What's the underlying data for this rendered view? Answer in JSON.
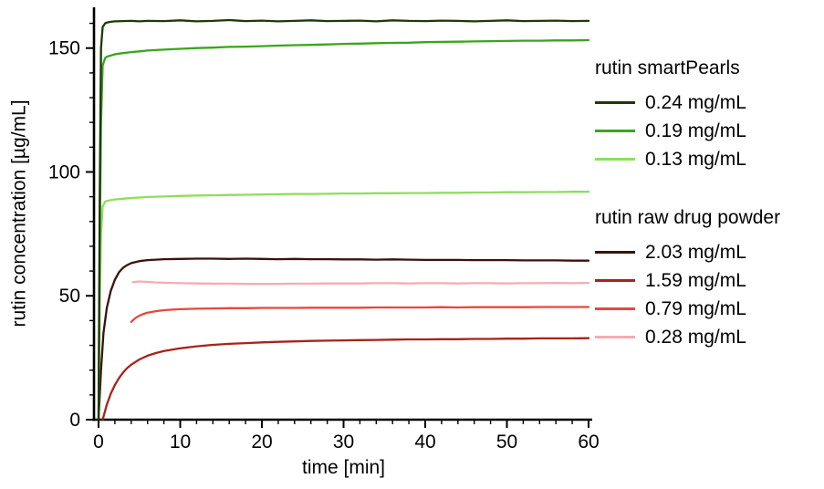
{
  "chart_data": {
    "type": "line",
    "title": "",
    "xlabel": "time [min]",
    "ylabel": "rutin concentration [µg/mL]",
    "xlim": [
      0,
      60
    ],
    "ylim": [
      0,
      165
    ],
    "xticks": [
      0,
      10,
      20,
      30,
      40,
      50,
      60
    ],
    "yticks": [
      0,
      50,
      100,
      150
    ],
    "x_minor_step": 2,
    "y_minor_step": 10,
    "grid": false,
    "axis_color": "#000000",
    "legend": {
      "position": "right",
      "groups": [
        {
          "title": "rutin smartPearls",
          "entries": [
            {
              "label": "0.24 mg/mL",
              "series": 0
            },
            {
              "label": "0.19 mg/mL",
              "series": 1
            },
            {
              "label": "0.13 mg/mL",
              "series": 2
            }
          ]
        },
        {
          "title": "rutin raw drug powder",
          "entries": [
            {
              "label": "2.03 mg/mL",
              "series": 3
            },
            {
              "label": "1.59 mg/mL",
              "series": 4
            },
            {
              "label": "0.79 mg/mL",
              "series": 5
            },
            {
              "label": "0.28 mg/mL",
              "series": 6
            }
          ]
        }
      ]
    },
    "series": [
      {
        "name": "rutin smartPearls 0.24 mg/mL",
        "color": "#1c3a08",
        "points": [
          [
            0,
            0
          ],
          [
            0.15,
            90
          ],
          [
            0.3,
            150
          ],
          [
            0.5,
            158.5
          ],
          [
            0.8,
            160
          ],
          [
            1,
            160.3
          ],
          [
            1.5,
            160.6
          ],
          [
            2,
            160.8
          ],
          [
            3,
            160.9
          ],
          [
            4,
            161
          ],
          [
            5,
            160.8
          ],
          [
            6,
            161
          ],
          [
            8,
            160.9
          ],
          [
            10,
            161.2
          ],
          [
            12,
            160.8
          ],
          [
            14,
            161
          ],
          [
            16,
            161.3
          ],
          [
            18,
            160.9
          ],
          [
            20,
            161.1
          ],
          [
            22,
            160.8
          ],
          [
            24,
            161
          ],
          [
            26,
            161.2
          ],
          [
            28,
            160.9
          ],
          [
            30,
            161
          ],
          [
            32,
            161.1
          ],
          [
            34,
            160.8
          ],
          [
            36,
            161.2
          ],
          [
            38,
            161
          ],
          [
            40,
            160.9
          ],
          [
            42,
            161.1
          ],
          [
            44,
            161
          ],
          [
            46,
            160.8
          ],
          [
            48,
            161
          ],
          [
            50,
            161.2
          ],
          [
            52,
            160.9
          ],
          [
            54,
            161
          ],
          [
            56,
            161.1
          ],
          [
            58,
            160.9
          ],
          [
            60,
            161
          ]
        ]
      },
      {
        "name": "rutin smartPearls 0.19 mg/mL",
        "color": "#3aa51d",
        "points": [
          [
            0,
            0
          ],
          [
            0.15,
            70
          ],
          [
            0.3,
            120
          ],
          [
            0.5,
            143
          ],
          [
            0.8,
            146
          ],
          [
            1,
            146.5
          ],
          [
            1.5,
            147
          ],
          [
            2,
            147.5
          ],
          [
            3,
            148
          ],
          [
            4,
            148.4
          ],
          [
            5,
            148.7
          ],
          [
            6,
            149
          ],
          [
            8,
            149.4
          ],
          [
            10,
            149.7
          ],
          [
            12,
            150
          ],
          [
            14,
            150.2
          ],
          [
            16,
            150.5
          ],
          [
            18,
            150.6
          ],
          [
            20,
            150.8
          ],
          [
            22,
            151
          ],
          [
            24,
            151.2
          ],
          [
            26,
            151.3
          ],
          [
            28,
            151.5
          ],
          [
            30,
            151.7
          ],
          [
            32,
            151.8
          ],
          [
            34,
            152
          ],
          [
            36,
            152.1
          ],
          [
            38,
            152.2
          ],
          [
            40,
            152.4
          ],
          [
            42,
            152.5
          ],
          [
            44,
            152.6
          ],
          [
            46,
            152.7
          ],
          [
            48,
            152.8
          ],
          [
            50,
            152.9
          ],
          [
            52,
            153
          ],
          [
            54,
            153
          ],
          [
            56,
            153.1
          ],
          [
            58,
            153.1
          ],
          [
            60,
            153.2
          ]
        ]
      },
      {
        "name": "rutin smartPearls 0.13 mg/mL",
        "color": "#8ede5e",
        "points": [
          [
            0,
            0
          ],
          [
            0.15,
            45
          ],
          [
            0.3,
            75
          ],
          [
            0.5,
            86
          ],
          [
            0.8,
            88
          ],
          [
            1,
            88.3
          ],
          [
            1.5,
            88.6
          ],
          [
            2,
            88.9
          ],
          [
            3,
            89.2
          ],
          [
            4,
            89.5
          ],
          [
            5,
            89.7
          ],
          [
            6,
            89.9
          ],
          [
            8,
            90.1
          ],
          [
            10,
            90.3
          ],
          [
            12,
            90.5
          ],
          [
            14,
            90.6
          ],
          [
            16,
            90.7
          ],
          [
            18,
            90.8
          ],
          [
            20,
            90.9
          ],
          [
            22,
            91
          ],
          [
            24,
            91.1
          ],
          [
            26,
            91.1
          ],
          [
            28,
            91.2
          ],
          [
            30,
            91.3
          ],
          [
            32,
            91.3
          ],
          [
            34,
            91.4
          ],
          [
            36,
            91.4
          ],
          [
            38,
            91.5
          ],
          [
            40,
            91.5
          ],
          [
            42,
            91.6
          ],
          [
            44,
            91.6
          ],
          [
            46,
            91.7
          ],
          [
            48,
            91.7
          ],
          [
            50,
            91.8
          ],
          [
            52,
            91.8
          ],
          [
            54,
            91.9
          ],
          [
            56,
            91.9
          ],
          [
            58,
            92
          ],
          [
            60,
            92
          ]
        ]
      },
      {
        "name": "rutin raw drug powder 2.03 mg/mL",
        "color": "#3c120c",
        "points": [
          [
            0,
            0
          ],
          [
            0.3,
            20
          ],
          [
            0.6,
            35
          ],
          [
            1,
            45
          ],
          [
            1.5,
            52
          ],
          [
            2,
            56.5
          ],
          [
            2.5,
            59.5
          ],
          [
            3,
            61.3
          ],
          [
            3.5,
            62.4
          ],
          [
            4,
            63.2
          ],
          [
            5,
            64
          ],
          [
            6,
            64.4
          ],
          [
            7,
            64.6
          ],
          [
            8,
            64.8
          ],
          [
            10,
            64.9
          ],
          [
            12,
            65
          ],
          [
            14,
            65
          ],
          [
            16,
            64.9
          ],
          [
            18,
            65
          ],
          [
            20,
            64.9
          ],
          [
            22,
            64.8
          ],
          [
            24,
            64.9
          ],
          [
            26,
            64.8
          ],
          [
            28,
            64.8
          ],
          [
            30,
            64.7
          ],
          [
            32,
            64.7
          ],
          [
            34,
            64.6
          ],
          [
            36,
            64.7
          ],
          [
            38,
            64.6
          ],
          [
            40,
            64.5
          ],
          [
            42,
            64.5
          ],
          [
            44,
            64.5
          ],
          [
            46,
            64.4
          ],
          [
            48,
            64.4
          ],
          [
            50,
            64.4
          ],
          [
            52,
            64.3
          ],
          [
            54,
            64.3
          ],
          [
            56,
            64.3
          ],
          [
            58,
            64.2
          ],
          [
            60,
            64.2
          ]
        ]
      },
      {
        "name": "rutin raw drug powder 1.59 mg/mL",
        "color": "#a6241a",
        "points": [
          [
            0.5,
            0
          ],
          [
            1,
            6
          ],
          [
            1.5,
            10.5
          ],
          [
            2,
            14
          ],
          [
            2.5,
            16.8
          ],
          [
            3,
            19
          ],
          [
            3.5,
            20.8
          ],
          [
            4,
            22.2
          ],
          [
            5,
            24.3
          ],
          [
            6,
            25.8
          ],
          [
            7,
            26.9
          ],
          [
            8,
            27.7
          ],
          [
            9,
            28.3
          ],
          [
            10,
            28.8
          ],
          [
            12,
            29.6
          ],
          [
            14,
            30.2
          ],
          [
            16,
            30.6
          ],
          [
            18,
            30.9
          ],
          [
            20,
            31.2
          ],
          [
            22,
            31.4
          ],
          [
            24,
            31.6
          ],
          [
            26,
            31.8
          ],
          [
            28,
            31.9
          ],
          [
            30,
            32
          ],
          [
            32,
            32.1
          ],
          [
            34,
            32.2
          ],
          [
            36,
            32.3
          ],
          [
            38,
            32.4
          ],
          [
            40,
            32.4
          ],
          [
            42,
            32.5
          ],
          [
            44,
            32.5
          ],
          [
            46,
            32.6
          ],
          [
            48,
            32.6
          ],
          [
            50,
            32.7
          ],
          [
            52,
            32.7
          ],
          [
            54,
            32.8
          ],
          [
            56,
            32.8
          ],
          [
            58,
            32.8
          ],
          [
            60,
            32.9
          ]
        ]
      },
      {
        "name": "rutin raw drug powder 0.79 mg/mL",
        "color": "#e8473c",
        "points": [
          [
            4,
            39.5
          ],
          [
            4.5,
            41
          ],
          [
            5,
            42
          ],
          [
            5.5,
            42.7
          ],
          [
            6,
            43.2
          ],
          [
            7,
            43.8
          ],
          [
            8,
            44.2
          ],
          [
            9,
            44.4
          ],
          [
            10,
            44.6
          ],
          [
            12,
            44.8
          ],
          [
            14,
            44.9
          ],
          [
            16,
            45
          ],
          [
            18,
            45
          ],
          [
            20,
            45.1
          ],
          [
            22,
            45.1
          ],
          [
            24,
            45.1
          ],
          [
            26,
            45.2
          ],
          [
            28,
            45.2
          ],
          [
            30,
            45.2
          ],
          [
            32,
            45.2
          ],
          [
            34,
            45.3
          ],
          [
            36,
            45.3
          ],
          [
            38,
            45.3
          ],
          [
            40,
            45.3
          ],
          [
            42,
            45.4
          ],
          [
            44,
            45.3
          ],
          [
            46,
            45.4
          ],
          [
            48,
            45.4
          ],
          [
            50,
            45.4
          ],
          [
            52,
            45.4
          ],
          [
            54,
            45.5
          ],
          [
            56,
            45.5
          ],
          [
            58,
            45.5
          ],
          [
            60,
            45.5
          ]
        ]
      },
      {
        "name": "rutin raw drug powder 0.28 mg/mL",
        "color": "#f6abb2",
        "points": [
          [
            4.2,
            55.5
          ],
          [
            5,
            55.8
          ],
          [
            6,
            55.6
          ],
          [
            7,
            55.4
          ],
          [
            8,
            55.3
          ],
          [
            10,
            55.1
          ],
          [
            12,
            55
          ],
          [
            14,
            54.9
          ],
          [
            16,
            54.9
          ],
          [
            18,
            54.8
          ],
          [
            20,
            54.8
          ],
          [
            22,
            54.8
          ],
          [
            24,
            54.9
          ],
          [
            26,
            54.9
          ],
          [
            28,
            55
          ],
          [
            30,
            55
          ],
          [
            32,
            55
          ],
          [
            34,
            55.1
          ],
          [
            36,
            55.1
          ],
          [
            38,
            55
          ],
          [
            40,
            55.1
          ],
          [
            42,
            55.1
          ],
          [
            44,
            55
          ],
          [
            46,
            55.1
          ],
          [
            48,
            55.1
          ],
          [
            50,
            55
          ],
          [
            52,
            55.1
          ],
          [
            54,
            55.1
          ],
          [
            56,
            55.2
          ],
          [
            58,
            55.1
          ],
          [
            60,
            55.2
          ]
        ]
      }
    ]
  }
}
